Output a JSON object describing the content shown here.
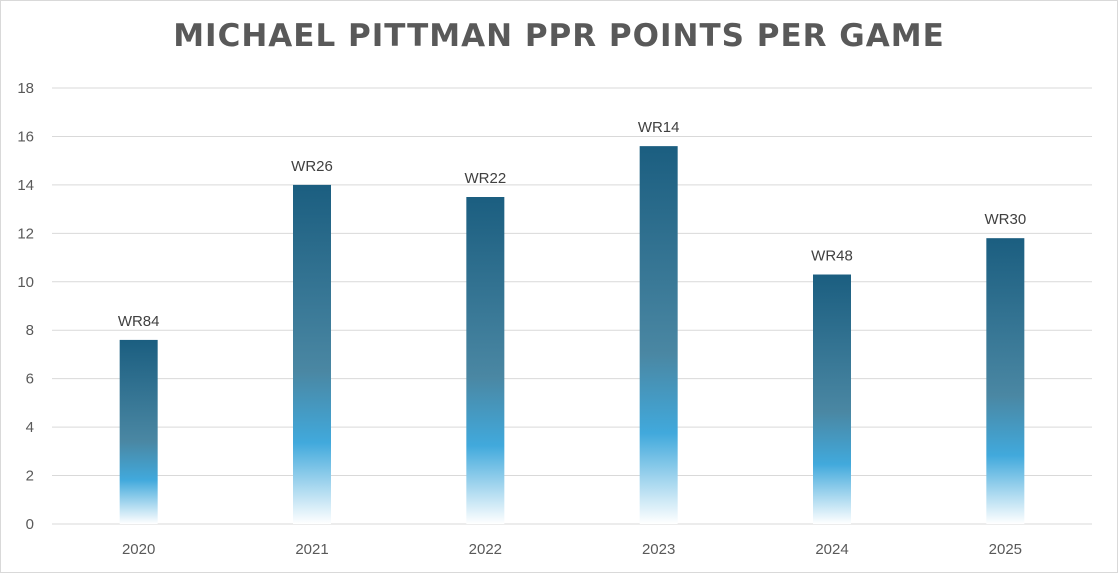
{
  "chart_data": {
    "type": "bar",
    "title": "MICHAEL PITTMAN PPR POINTS PER GAME",
    "categories": [
      "2020",
      "2021",
      "2022",
      "2023",
      "2024",
      "2025"
    ],
    "values": [
      7.6,
      14.0,
      13.5,
      15.6,
      10.3,
      11.8
    ],
    "data_labels": [
      "WR84",
      "WR26",
      "WR22",
      "WR14",
      "WR48",
      "WR30"
    ],
    "ylim": [
      0,
      18
    ],
    "yticks": [
      0,
      2,
      4,
      6,
      8,
      10,
      12,
      14,
      16,
      18
    ],
    "xlabel": "",
    "ylabel": "",
    "grid": true,
    "legend": "none",
    "colors": {
      "bar_top": "#1b5e80",
      "bar_mid": "#41a9dc",
      "bar_bottom": "#ffffff",
      "grid": "#d9d9d9",
      "text": "#595959"
    }
  }
}
